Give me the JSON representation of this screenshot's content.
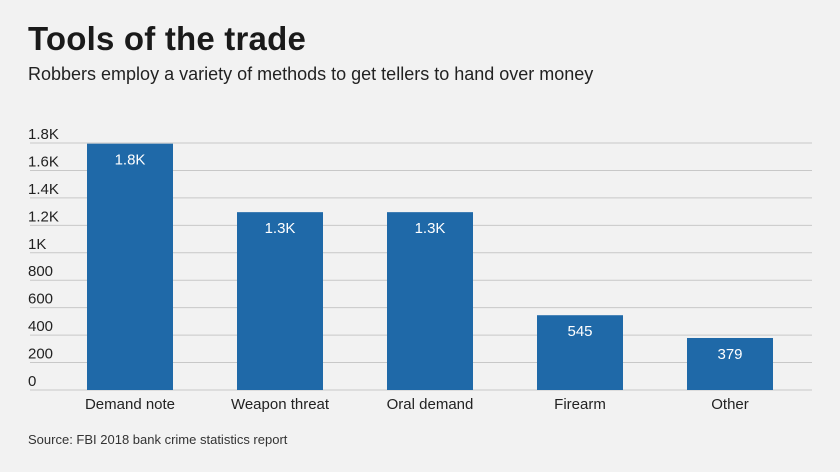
{
  "title": "Tools of the trade",
  "subtitle": "Robbers employ a variety of methods to get tellers to hand over money",
  "source": "Source: FBI 2018 bank crime statistics report",
  "colors": {
    "background": "#f2f2f2",
    "bar": "#1f69a8",
    "grid": "#c8c8c8"
  },
  "chart_data": {
    "type": "bar",
    "title": "Tools of the trade",
    "subtitle": "Robbers employ a variety of methods to get tellers to hand over money",
    "xlabel": "",
    "ylabel": "",
    "categories": [
      "Demand note",
      "Weapon threat",
      "Oral demand",
      "Firearm",
      "Other"
    ],
    "values": [
      1795,
      1296,
      1296,
      545,
      379
    ],
    "data_labels": [
      "1.8K",
      "1.3K",
      "1.3K",
      "545",
      "379"
    ],
    "ylim": [
      0,
      1800
    ],
    "yticks": [
      0,
      200,
      400,
      600,
      800,
      1000,
      1200,
      1400,
      1600,
      1800
    ],
    "ytick_labels": [
      "0",
      "200",
      "400",
      "600",
      "800",
      "1K",
      "1.2K",
      "1.4K",
      "1.6K",
      "1.8K"
    ],
    "grid": true,
    "legend": "none"
  }
}
